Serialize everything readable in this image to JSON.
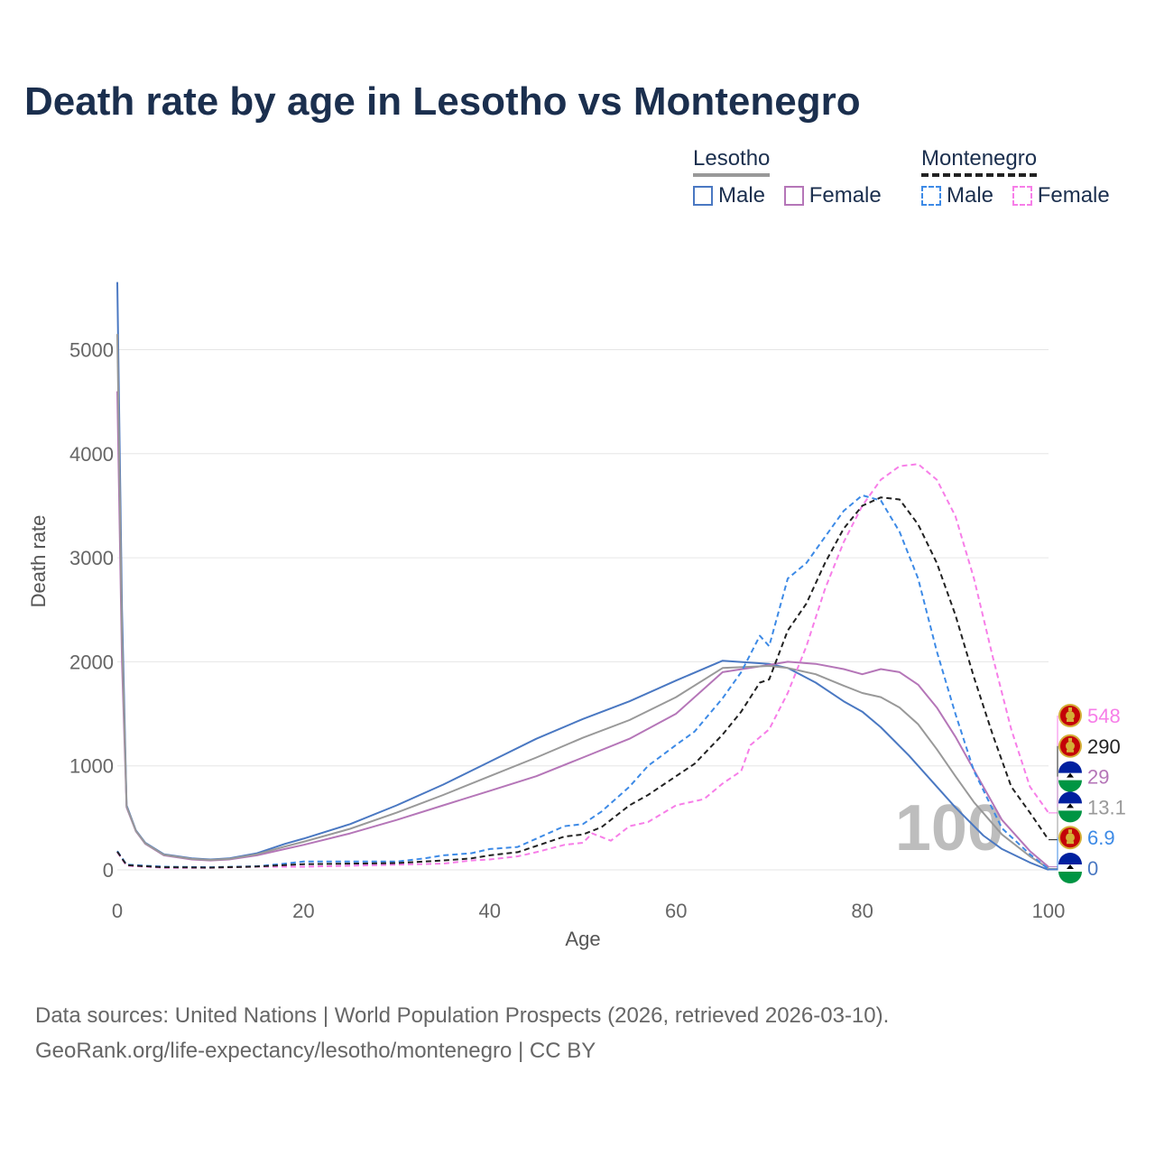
{
  "title": "Death rate by age in Lesotho vs Montenegro",
  "legend": {
    "lesotho": {
      "label": "Lesotho",
      "male": "Male",
      "female": "Female"
    },
    "montenegro": {
      "label": "Montenegro",
      "male": "Male",
      "female": "Female"
    }
  },
  "source": {
    "line1": "Data sources: United Nations | World Population Prospects (2026, retrieved 2026-03-10).",
    "line2": "GeoRank.org/life-expectancy/lesotho/montenegro | CC BY"
  },
  "colors": {
    "les_male": "#4a78c2",
    "les_female": "#b576b8",
    "les_avg": "#999999",
    "mne_male": "#3d8ae6",
    "mne_female": "#f77ee8",
    "mne_avg": "#222222",
    "grid": "#e6e6e6",
    "watermark": "#bdbdbd"
  },
  "chart_data": {
    "type": "line",
    "title": "Death rate by age in Lesotho vs Montenegro",
    "xlabel": "Age",
    "ylabel": "Death rate",
    "xlim": [
      0,
      100
    ],
    "ylim": [
      0,
      5500
    ],
    "xticks": [
      0,
      20,
      40,
      60,
      80,
      100
    ],
    "yticks": [
      0,
      1000,
      2000,
      3000,
      4000,
      5000
    ],
    "watermark": "100",
    "series": [
      {
        "key": "les_male",
        "name": "Lesotho Male",
        "country": "Lesotho",
        "dash": false,
        "points": [
          [
            0,
            5650
          ],
          [
            0.5,
            2500
          ],
          [
            1,
            620
          ],
          [
            2,
            380
          ],
          [
            3,
            260
          ],
          [
            5,
            150
          ],
          [
            8,
            110
          ],
          [
            10,
            100
          ],
          [
            12,
            110
          ],
          [
            15,
            160
          ],
          [
            18,
            250
          ],
          [
            20,
            300
          ],
          [
            25,
            440
          ],
          [
            30,
            620
          ],
          [
            35,
            820
          ],
          [
            40,
            1040
          ],
          [
            45,
            1260
          ],
          [
            50,
            1450
          ],
          [
            55,
            1620
          ],
          [
            60,
            1820
          ],
          [
            65,
            2010
          ],
          [
            70,
            1980
          ],
          [
            72,
            1940
          ],
          [
            75,
            1800
          ],
          [
            78,
            1620
          ],
          [
            80,
            1520
          ],
          [
            82,
            1370
          ],
          [
            85,
            1100
          ],
          [
            88,
            800
          ],
          [
            90,
            600
          ],
          [
            93,
            330
          ],
          [
            95,
            200
          ],
          [
            98,
            70
          ],
          [
            100,
            0
          ]
        ]
      },
      {
        "key": "les_female",
        "name": "Lesotho Female",
        "country": "Lesotho",
        "dash": false,
        "points": [
          [
            0,
            4600
          ],
          [
            0.5,
            2000
          ],
          [
            1,
            600
          ],
          [
            2,
            370
          ],
          [
            3,
            250
          ],
          [
            5,
            140
          ],
          [
            8,
            100
          ],
          [
            10,
            90
          ],
          [
            12,
            100
          ],
          [
            15,
            140
          ],
          [
            18,
            200
          ],
          [
            20,
            240
          ],
          [
            25,
            350
          ],
          [
            30,
            480
          ],
          [
            35,
            620
          ],
          [
            40,
            760
          ],
          [
            45,
            900
          ],
          [
            50,
            1080
          ],
          [
            55,
            1260
          ],
          [
            60,
            1500
          ],
          [
            65,
            1900
          ],
          [
            70,
            1970
          ],
          [
            72,
            2000
          ],
          [
            75,
            1980
          ],
          [
            78,
            1930
          ],
          [
            80,
            1880
          ],
          [
            82,
            1930
          ],
          [
            84,
            1900
          ],
          [
            86,
            1780
          ],
          [
            88,
            1560
          ],
          [
            90,
            1280
          ],
          [
            92,
            960
          ],
          [
            95,
            480
          ],
          [
            98,
            180
          ],
          [
            100,
            29
          ]
        ]
      },
      {
        "key": "les_avg",
        "name": "Lesotho",
        "country": "Lesotho",
        "dash": false,
        "points": [
          [
            0,
            5150
          ],
          [
            0.5,
            2250
          ],
          [
            1,
            610
          ],
          [
            2,
            375
          ],
          [
            3,
            255
          ],
          [
            5,
            145
          ],
          [
            8,
            105
          ],
          [
            10,
            95
          ],
          [
            12,
            105
          ],
          [
            15,
            150
          ],
          [
            18,
            225
          ],
          [
            20,
            270
          ],
          [
            25,
            395
          ],
          [
            30,
            550
          ],
          [
            35,
            720
          ],
          [
            40,
            900
          ],
          [
            45,
            1080
          ],
          [
            50,
            1270
          ],
          [
            55,
            1440
          ],
          [
            60,
            1660
          ],
          [
            65,
            1940
          ],
          [
            70,
            1960
          ],
          [
            72,
            1940
          ],
          [
            75,
            1880
          ],
          [
            78,
            1770
          ],
          [
            80,
            1700
          ],
          [
            82,
            1660
          ],
          [
            84,
            1560
          ],
          [
            86,
            1400
          ],
          [
            88,
            1160
          ],
          [
            90,
            900
          ],
          [
            92,
            650
          ],
          [
            95,
            340
          ],
          [
            98,
            130
          ],
          [
            100,
            13.1
          ]
        ]
      },
      {
        "key": "mne_male",
        "name": "Montenegro Male",
        "country": "Montenegro",
        "dash": true,
        "points": [
          [
            0,
            180
          ],
          [
            1,
            50
          ],
          [
            3,
            40
          ],
          [
            5,
            30
          ],
          [
            10,
            25
          ],
          [
            15,
            35
          ],
          [
            18,
            60
          ],
          [
            20,
            80
          ],
          [
            25,
            80
          ],
          [
            30,
            80
          ],
          [
            33,
            110
          ],
          [
            35,
            140
          ],
          [
            38,
            160
          ],
          [
            40,
            200
          ],
          [
            43,
            220
          ],
          [
            45,
            300
          ],
          [
            48,
            420
          ],
          [
            50,
            440
          ],
          [
            52,
            560
          ],
          [
            55,
            800
          ],
          [
            57,
            1000
          ],
          [
            60,
            1200
          ],
          [
            62,
            1330
          ],
          [
            65,
            1650
          ],
          [
            67,
            1900
          ],
          [
            69,
            2250
          ],
          [
            70,
            2150
          ],
          [
            72,
            2800
          ],
          [
            74,
            2950
          ],
          [
            76,
            3200
          ],
          [
            78,
            3450
          ],
          [
            80,
            3600
          ],
          [
            82,
            3550
          ],
          [
            84,
            3250
          ],
          [
            86,
            2800
          ],
          [
            88,
            2100
          ],
          [
            90,
            1500
          ],
          [
            92,
            950
          ],
          [
            95,
            400
          ],
          [
            98,
            150
          ],
          [
            100,
            6.9
          ]
        ]
      },
      {
        "key": "mne_female",
        "name": "Montenegro Female",
        "country": "Montenegro",
        "dash": true,
        "points": [
          [
            0,
            170
          ],
          [
            1,
            40
          ],
          [
            3,
            30
          ],
          [
            5,
            20
          ],
          [
            10,
            20
          ],
          [
            15,
            30
          ],
          [
            20,
            30
          ],
          [
            25,
            40
          ],
          [
            30,
            50
          ],
          [
            35,
            60
          ],
          [
            38,
            90
          ],
          [
            40,
            100
          ],
          [
            43,
            130
          ],
          [
            45,
            170
          ],
          [
            48,
            240
          ],
          [
            50,
            260
          ],
          [
            51,
            350
          ],
          [
            53,
            280
          ],
          [
            55,
            420
          ],
          [
            57,
            460
          ],
          [
            60,
            620
          ],
          [
            63,
            680
          ],
          [
            65,
            830
          ],
          [
            67,
            950
          ],
          [
            68,
            1200
          ],
          [
            70,
            1350
          ],
          [
            72,
            1700
          ],
          [
            74,
            2150
          ],
          [
            76,
            2700
          ],
          [
            78,
            3150
          ],
          [
            80,
            3500
          ],
          [
            82,
            3750
          ],
          [
            84,
            3880
          ],
          [
            86,
            3900
          ],
          [
            88,
            3750
          ],
          [
            90,
            3400
          ],
          [
            92,
            2800
          ],
          [
            94,
            2050
          ],
          [
            96,
            1350
          ],
          [
            98,
            800
          ],
          [
            100,
            548
          ]
        ]
      },
      {
        "key": "mne_avg",
        "name": "Montenegro",
        "country": "Montenegro",
        "dash": true,
        "points": [
          [
            0,
            175
          ],
          [
            1,
            45
          ],
          [
            3,
            35
          ],
          [
            5,
            25
          ],
          [
            10,
            22
          ],
          [
            15,
            32
          ],
          [
            20,
            55
          ],
          [
            25,
            60
          ],
          [
            30,
            65
          ],
          [
            35,
            90
          ],
          [
            38,
            110
          ],
          [
            40,
            140
          ],
          [
            43,
            170
          ],
          [
            45,
            230
          ],
          [
            48,
            320
          ],
          [
            50,
            340
          ],
          [
            52,
            410
          ],
          [
            55,
            620
          ],
          [
            57,
            720
          ],
          [
            60,
            900
          ],
          [
            62,
            1020
          ],
          [
            65,
            1300
          ],
          [
            67,
            1520
          ],
          [
            69,
            1800
          ],
          [
            70,
            1830
          ],
          [
            72,
            2300
          ],
          [
            74,
            2560
          ],
          [
            76,
            2950
          ],
          [
            78,
            3280
          ],
          [
            80,
            3500
          ],
          [
            82,
            3580
          ],
          [
            84,
            3560
          ],
          [
            86,
            3320
          ],
          [
            88,
            2950
          ],
          [
            90,
            2450
          ],
          [
            92,
            1850
          ],
          [
            94,
            1300
          ],
          [
            96,
            800
          ],
          [
            98,
            550
          ],
          [
            100,
            290
          ]
        ]
      }
    ],
    "end_labels": [
      {
        "key": "mne_female",
        "value": "548",
        "country": "Montenegro"
      },
      {
        "key": "mne_avg",
        "value": "290",
        "country": "Montenegro"
      },
      {
        "key": "les_female",
        "value": "29",
        "country": "Lesotho"
      },
      {
        "key": "les_avg",
        "value": "13.1",
        "country": "Lesotho"
      },
      {
        "key": "mne_male",
        "value": "6.9",
        "country": "Montenegro"
      },
      {
        "key": "les_male",
        "value": "0",
        "country": "Lesotho"
      }
    ]
  }
}
